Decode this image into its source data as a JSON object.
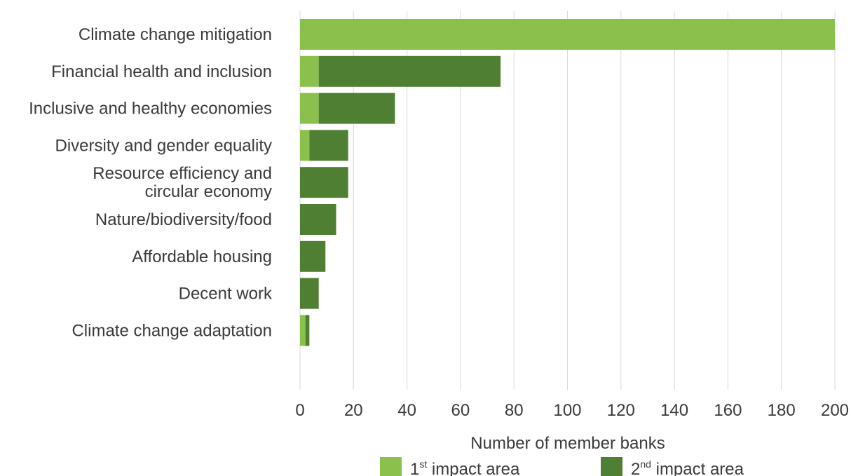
{
  "chart_data": {
    "type": "bar",
    "orientation": "horizontal",
    "stacked": true,
    "categories": [
      "Climate change mitigation",
      "Financial health and inclusion",
      "Inclusive and healthy economies",
      "Diversity and gender equality",
      "Resource efficiency and circular economy",
      "Nature/biodiversity/food",
      "Affordable housing",
      "Decent work",
      "Climate change adaptation"
    ],
    "category_lines": [
      [
        "Climate change mitigation"
      ],
      [
        "Financial health and inclusion"
      ],
      [
        "Inclusive and healthy economies"
      ],
      [
        "Diversity and gender equality"
      ],
      [
        "Resource efficiency and",
        "circular economy"
      ],
      [
        "Nature/biodiversity/food"
      ],
      [
        "Affordable housing"
      ],
      [
        "Decent work"
      ],
      [
        "Climate change adaptation"
      ]
    ],
    "series": [
      {
        "legend_base": "1",
        "legend_sup": "st",
        "legend_rest": " impact area",
        "color": "#8bc04d",
        "values": [
          200,
          7,
          7,
          3.5,
          0,
          0,
          0,
          0,
          2
        ]
      },
      {
        "legend_base": "2",
        "legend_sup": "nd",
        "legend_rest": " impact area",
        "color": "#4f7f33",
        "values": [
          0,
          68,
          28.5,
          14.5,
          18,
          13.5,
          9.5,
          7,
          1.5
        ]
      }
    ],
    "xlim": [
      0,
      200
    ],
    "xticks": [
      0,
      20,
      40,
      60,
      80,
      100,
      120,
      140,
      160,
      180,
      200
    ],
    "xlabel": "Number of member banks",
    "grid": "vertical",
    "legend_position": "bottom"
  }
}
